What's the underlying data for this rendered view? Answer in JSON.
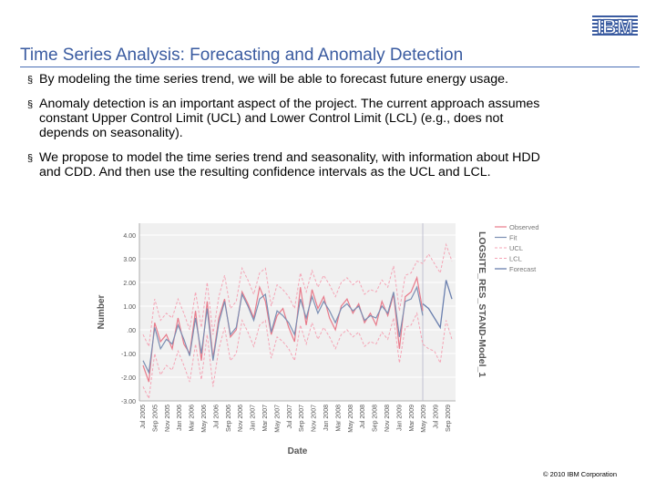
{
  "logo": {
    "text": "IBM",
    "icon": "ibm-logo-icon"
  },
  "title": "Time Series Analysis: Forecasting and Anomaly Detection",
  "bullets": [
    "By modeling the time series trend, we will be able to forecast future energy usage.",
    "Anomaly detection is an important aspect of the project. The current approach assumes constant Upper Control Limit (UCL) and Lower Control Limit (LCL) (e.g., does not depends on seasonality).",
    "We propose to model the time series trend and seasonality, with information about HDD and CDD. And then use the resulting confidence intervals as the UCL and LCL."
  ],
  "footer": "© 2010 IBM Corporation",
  "colors": {
    "title": "#3a5ba0",
    "observed": "#e87a8a",
    "fit": "#7b8fb3",
    "ucl": "#f4a4b5",
    "lcl": "#f4a4b5",
    "forecast": "#6a7fae",
    "plot_bg": "#f0f0f0"
  },
  "chart_data": {
    "type": "line",
    "xlabel": "Date",
    "ylabel": "Number",
    "side_title": "LOGSITE_RES_STAND-Model_1",
    "legend_position": "right",
    "ylim": [
      -3,
      4.5
    ],
    "yticks": [
      "4.00",
      "3.00",
      "2.00",
      "1.00",
      ".00",
      "-1.00",
      "-2.00",
      "-3.00"
    ],
    "ytick_values": [
      4,
      3,
      2,
      1,
      0,
      -1,
      -2,
      -3
    ],
    "xtick_labels": [
      "Jul 2005",
      "Sep 2005",
      "Nov 2005",
      "Jan 2006",
      "Mar 2006",
      "May 2006",
      "Jul 2006",
      "Sep 2006",
      "Nov 2006",
      "Jan 2007",
      "Mar 2007",
      "May 2007",
      "Jul 2007",
      "Sep 2007",
      "Nov 2007",
      "Jan 2008",
      "Mar 2008",
      "May 2008",
      "Jul 2008",
      "Sep 2008",
      "Nov 2008",
      "Jan 2009",
      "Mar 2009",
      "May 2009",
      "Jul 2009",
      "Sep 2009"
    ],
    "forecast_start_index": 48,
    "series": [
      {
        "name": "Observed",
        "values": [
          -1.5,
          -2.2,
          0.3,
          -0.5,
          -0.2,
          -0.8,
          0.5,
          -0.6,
          -1.0,
          0.8,
          -1.3,
          1.2,
          -1.2,
          0.5,
          1.3,
          -0.3,
          0.0,
          1.6,
          1.1,
          0.5,
          1.8,
          1.2,
          -0.2,
          0.6,
          0.9,
          0.1,
          -0.5,
          1.8,
          0.2,
          1.7,
          0.9,
          1.4,
          0.5,
          0.0,
          1.0,
          1.3,
          0.7,
          1.1,
          0.3,
          0.7,
          0.2,
          1.2,
          0.6,
          1.5,
          -0.8,
          1.4,
          1.6,
          2.2,
          0.8
        ]
      },
      {
        "name": "Fit",
        "values": [
          -1.3,
          -1.8,
          0.1,
          -0.8,
          -0.4,
          -0.6,
          0.2,
          -0.4,
          -1.1,
          0.5,
          -1.0,
          0.9,
          -1.3,
          0.3,
          1.2,
          -0.2,
          0.1,
          1.5,
          1.0,
          0.4,
          1.3,
          1.5,
          -0.1,
          0.8,
          0.6,
          0.3,
          -0.2,
          1.3,
          0.5,
          1.4,
          0.7,
          1.2,
          0.8,
          0.3,
          0.9,
          1.1,
          0.8,
          1.0,
          0.4,
          0.6,
          0.5,
          1.0,
          0.7,
          1.6,
          -0.3,
          1.2,
          1.3,
          1.8,
          0.6
        ]
      },
      {
        "name": "UCL",
        "values": [
          -0.2,
          -0.7,
          1.3,
          0.4,
          0.7,
          0.5,
          1.3,
          0.7,
          0.0,
          1.6,
          0.1,
          2.0,
          -0.2,
          1.4,
          2.3,
          0.9,
          1.2,
          2.6,
          2.1,
          1.5,
          2.4,
          2.6,
          1.0,
          1.9,
          1.7,
          1.4,
          0.9,
          2.4,
          1.6,
          2.5,
          1.8,
          2.3,
          1.9,
          1.4,
          2.0,
          2.2,
          1.9,
          2.1,
          1.5,
          1.7,
          1.6,
          2.1,
          1.8,
          2.7,
          0.8,
          2.3,
          2.4,
          2.9,
          2.8,
          3.2,
          2.8,
          2.4,
          3.6,
          2.9
        ]
      },
      {
        "name": "LCL",
        "values": [
          -2.4,
          -2.9,
          -1.0,
          -1.9,
          -1.5,
          -1.7,
          -0.9,
          -1.5,
          -2.2,
          -0.6,
          -2.1,
          -0.2,
          -2.4,
          -0.8,
          0.1,
          -1.3,
          -1.0,
          0.4,
          -0.1,
          -0.7,
          0.2,
          0.4,
          -1.2,
          -0.3,
          -0.5,
          -0.8,
          -1.3,
          0.2,
          -0.6,
          0.3,
          -0.4,
          0.1,
          -0.3,
          -0.8,
          -0.2,
          0.0,
          -0.3,
          -0.1,
          -0.7,
          -0.5,
          -0.6,
          -0.1,
          -0.4,
          0.5,
          -1.4,
          0.1,
          0.2,
          0.7,
          -0.6,
          -0.8,
          -0.9,
          -1.4,
          0.4,
          -0.4
        ]
      },
      {
        "name": "Forecast",
        "values": [
          null,
          null,
          null,
          null,
          null,
          null,
          null,
          null,
          null,
          null,
          null,
          null,
          null,
          null,
          null,
          null,
          null,
          null,
          null,
          null,
          null,
          null,
          null,
          null,
          null,
          null,
          null,
          null,
          null,
          null,
          null,
          null,
          null,
          null,
          null,
          null,
          null,
          null,
          null,
          null,
          null,
          null,
          null,
          null,
          null,
          null,
          null,
          null,
          1.1,
          0.9,
          0.5,
          0.1,
          2.1,
          1.3
        ]
      }
    ]
  }
}
